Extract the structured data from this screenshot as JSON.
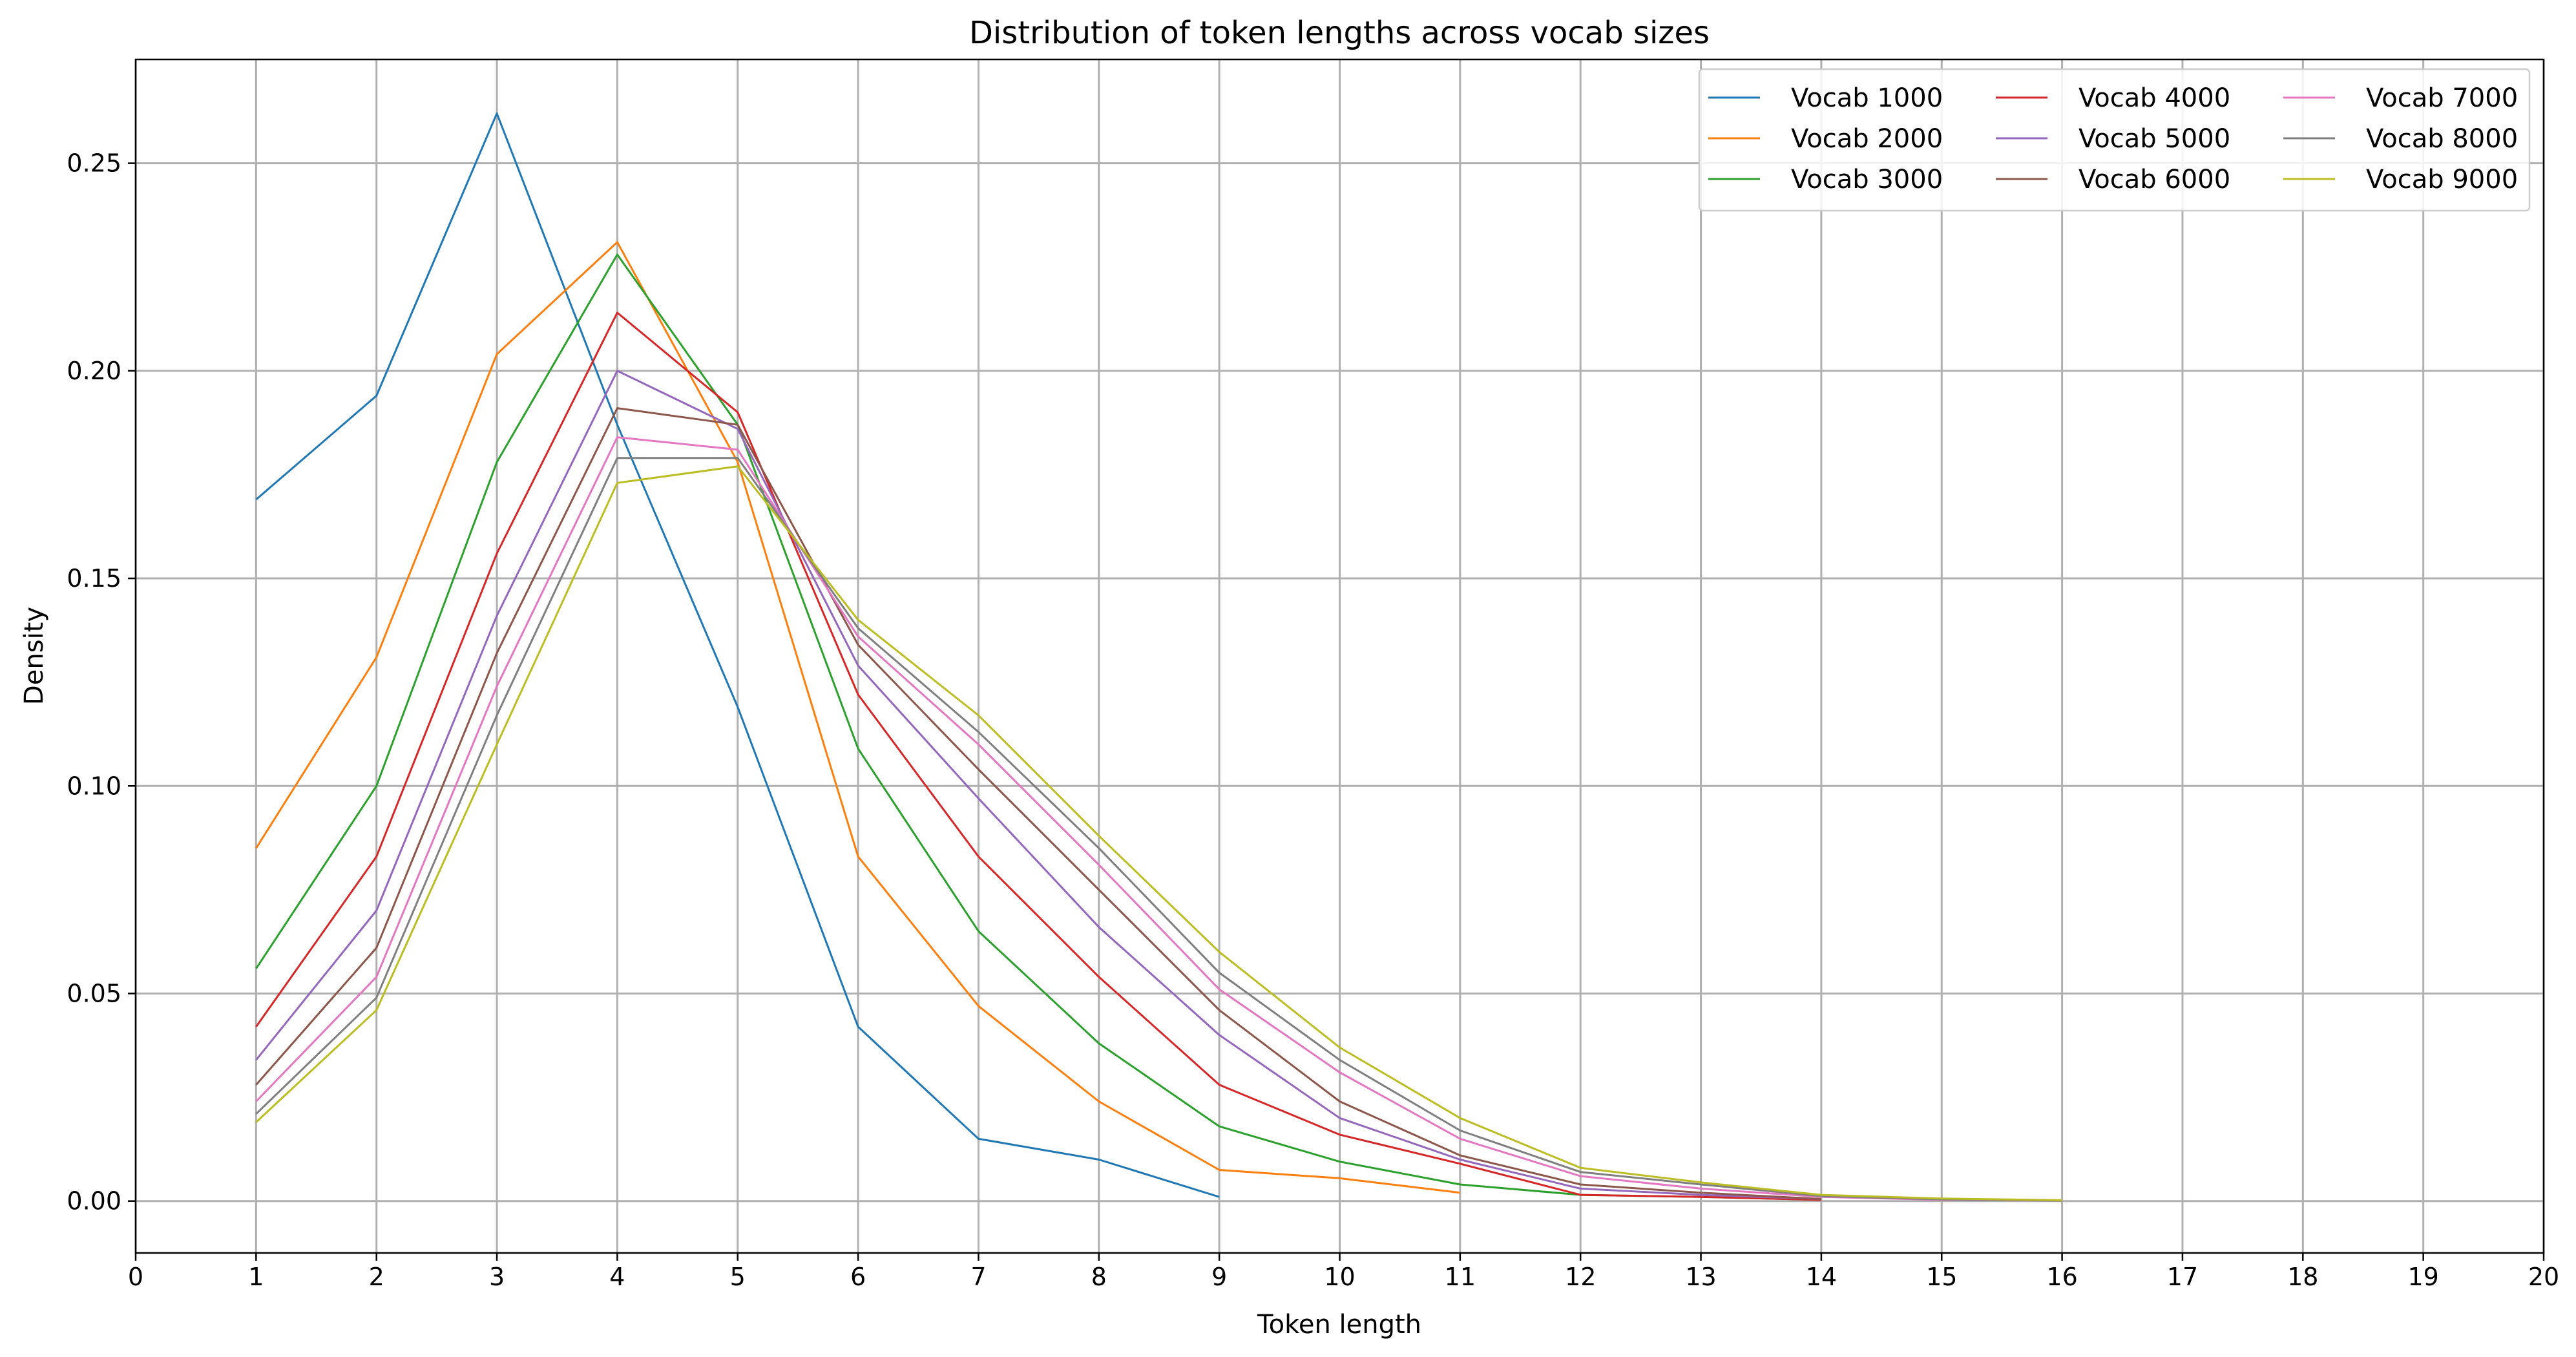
{
  "chart_data": {
    "type": "line",
    "title": "Distribution of token lengths across vocab sizes",
    "xlabel": "Token length",
    "ylabel": "Density",
    "xlim": [
      0,
      20
    ],
    "ylim": [
      -0.0125,
      0.275
    ],
    "xticks": [
      "0",
      "1",
      "2",
      "3",
      "4",
      "5",
      "6",
      "7",
      "8",
      "9",
      "10",
      "11",
      "12",
      "13",
      "14",
      "15",
      "16",
      "17",
      "18",
      "19",
      "20"
    ],
    "yticks": [
      "0.00",
      "0.05",
      "0.10",
      "0.15",
      "0.20",
      "0.25"
    ],
    "grid": true,
    "legend_position": "upper right",
    "legend_columns": 3,
    "series": [
      {
        "name": "Vocab 1000",
        "color": "#1f77b4",
        "x": [
          1,
          2,
          3,
          4,
          5,
          6,
          7,
          8,
          9
        ],
        "y": [
          0.169,
          0.194,
          0.262,
          0.187,
          0.119,
          0.042,
          0.015,
          0.01,
          0.001
        ]
      },
      {
        "name": "Vocab 2000",
        "color": "#ff7f0e",
        "x": [
          1,
          2,
          3,
          4,
          5,
          6,
          7,
          8,
          9,
          10,
          11
        ],
        "y": [
          0.085,
          0.131,
          0.204,
          0.231,
          0.178,
          0.083,
          0.047,
          0.024,
          0.0075,
          0.0055,
          0.002
        ]
      },
      {
        "name": "Vocab 3000",
        "color": "#2ca02c",
        "x": [
          1,
          2,
          3,
          4,
          5,
          6,
          7,
          8,
          9,
          10,
          11,
          12,
          13,
          14
        ],
        "y": [
          0.056,
          0.1,
          0.178,
          0.228,
          0.187,
          0.109,
          0.065,
          0.038,
          0.018,
          0.0095,
          0.004,
          0.0015,
          0.001,
          0.0003
        ]
      },
      {
        "name": "Vocab 4000",
        "color": "#d62728",
        "x": [
          1,
          2,
          3,
          4,
          5,
          6,
          7,
          8,
          9,
          10,
          11,
          12,
          13,
          14
        ],
        "y": [
          0.042,
          0.083,
          0.156,
          0.214,
          0.19,
          0.122,
          0.083,
          0.054,
          0.028,
          0.016,
          0.009,
          0.0015,
          0.001,
          0.0003
        ]
      },
      {
        "name": "Vocab 5000",
        "color": "#9467bd",
        "x": [
          1,
          2,
          3,
          4,
          5,
          6,
          7,
          8,
          9,
          10,
          11,
          12,
          13,
          14
        ],
        "y": [
          0.034,
          0.07,
          0.141,
          0.2,
          0.186,
          0.129,
          0.097,
          0.066,
          0.04,
          0.02,
          0.01,
          0.003,
          0.0015,
          0.0005
        ]
      },
      {
        "name": "Vocab 6000",
        "color": "#8c564b",
        "x": [
          1,
          2,
          3,
          4,
          5,
          6,
          7,
          8,
          9,
          10,
          11,
          12,
          13,
          14
        ],
        "y": [
          0.028,
          0.061,
          0.132,
          0.191,
          0.187,
          0.134,
          0.104,
          0.075,
          0.046,
          0.024,
          0.011,
          0.004,
          0.002,
          0.0005
        ]
      },
      {
        "name": "Vocab 7000",
        "color": "#e377c2",
        "x": [
          1,
          2,
          3,
          4,
          5,
          6,
          7,
          8,
          9,
          10,
          11,
          12,
          13,
          14,
          15,
          16
        ],
        "y": [
          0.024,
          0.054,
          0.124,
          0.184,
          0.181,
          0.136,
          0.11,
          0.081,
          0.051,
          0.031,
          0.015,
          0.006,
          0.003,
          0.001,
          0.0003,
          0.0001
        ]
      },
      {
        "name": "Vocab 8000",
        "color": "#7f7f7f",
        "x": [
          1,
          2,
          3,
          4,
          5,
          6,
          7,
          8,
          9,
          10,
          11,
          12,
          13,
          14,
          15,
          16
        ],
        "y": [
          0.021,
          0.049,
          0.117,
          0.179,
          0.179,
          0.138,
          0.113,
          0.085,
          0.055,
          0.034,
          0.017,
          0.007,
          0.004,
          0.0012,
          0.0004,
          0.0001
        ]
      },
      {
        "name": "Vocab 9000",
        "color": "#bcbd22",
        "x": [
          1,
          2,
          3,
          4,
          5,
          6,
          7,
          8,
          9,
          10,
          11,
          12,
          13,
          14,
          15,
          16
        ],
        "y": [
          0.019,
          0.046,
          0.11,
          0.173,
          0.177,
          0.14,
          0.117,
          0.088,
          0.06,
          0.037,
          0.02,
          0.008,
          0.0045,
          0.0015,
          0.0006,
          0.0002
        ]
      }
    ]
  }
}
